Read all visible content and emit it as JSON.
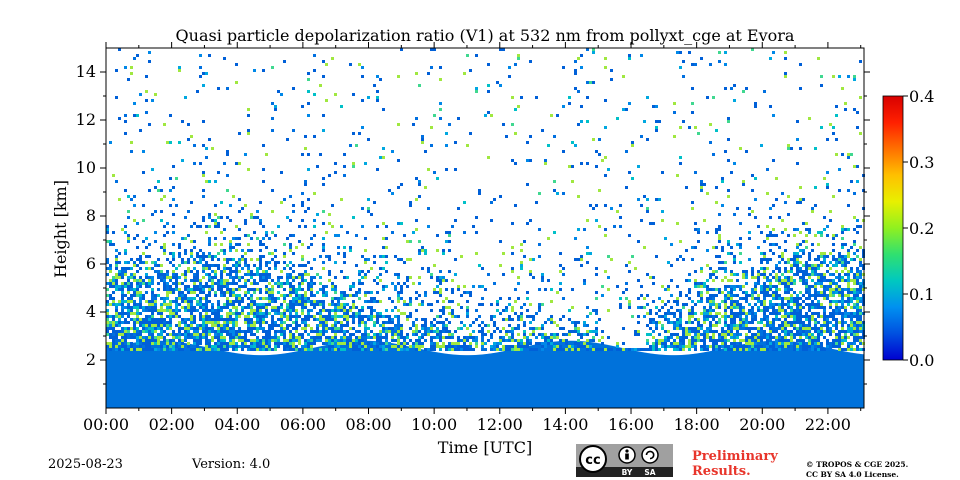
{
  "chart_data": {
    "type": "heatmap",
    "title": "Quasi particle depolarization ratio (V1) at 532 nm from pollyxt_cge at Evora",
    "xlabel": "Time [UTC]",
    "ylabel": "Height [km]",
    "x_range_hours": [
      0,
      23.1
    ],
    "ylim_km": [
      0,
      15
    ],
    "x_ticks": [
      "00:00",
      "02:00",
      "04:00",
      "06:00",
      "08:00",
      "10:00",
      "12:00",
      "14:00",
      "16:00",
      "18:00",
      "20:00",
      "22:00"
    ],
    "y_ticks": [
      "2",
      "4",
      "6",
      "8",
      "10",
      "12",
      "14"
    ],
    "colorbar": {
      "min": 0.0,
      "max": 0.4,
      "ticks": [
        "0.0",
        "0.1",
        "0.2",
        "0.3",
        "0.4"
      ],
      "colors": [
        "#0000d0",
        "#0050e0",
        "#0090f0",
        "#00c8c0",
        "#30e070",
        "#90f020",
        "#e8f000",
        "#ffc000",
        "#ff7000",
        "#ff2000",
        "#d80000"
      ]
    },
    "boundary_layer_top_km": [
      {
        "time": 0,
        "height": 5.8
      },
      {
        "time": 2,
        "height": 5.6
      },
      {
        "time": 4,
        "height": 5.6
      },
      {
        "time": 5.5,
        "height": 5.5
      },
      {
        "time": 6.5,
        "height": 4.6
      },
      {
        "time": 8,
        "height": 4.0
      },
      {
        "time": 10,
        "height": 3.3
      },
      {
        "time": 12,
        "height": 2.8
      },
      {
        "time": 14,
        "height": 2.7
      },
      {
        "time": 15.5,
        "height": 2.5
      },
      {
        "time": 16.5,
        "height": 3.0
      },
      {
        "time": 18,
        "height": 4.2
      },
      {
        "time": 20,
        "height": 5.4
      },
      {
        "time": 22,
        "height": 5.8
      },
      {
        "time": 23.1,
        "height": 6.0
      }
    ],
    "dense_layer_top_km": 2.5,
    "typical_depol_dense": 0.07
  },
  "footer": {
    "date": "2025-08-23",
    "version": "Version: 4.0",
    "preliminary": [
      "Preliminary",
      "Results."
    ],
    "license": [
      "© TROPOS & CGE 2025.",
      "CC BY SA 4.0 License."
    ],
    "badge": {
      "cc": "cc",
      "by": "BY",
      "sa": "SA"
    }
  },
  "colors": {
    "preliminary": "#e8352b",
    "badge_bg": "#a0a0a0",
    "badge_strip": "#222222"
  }
}
